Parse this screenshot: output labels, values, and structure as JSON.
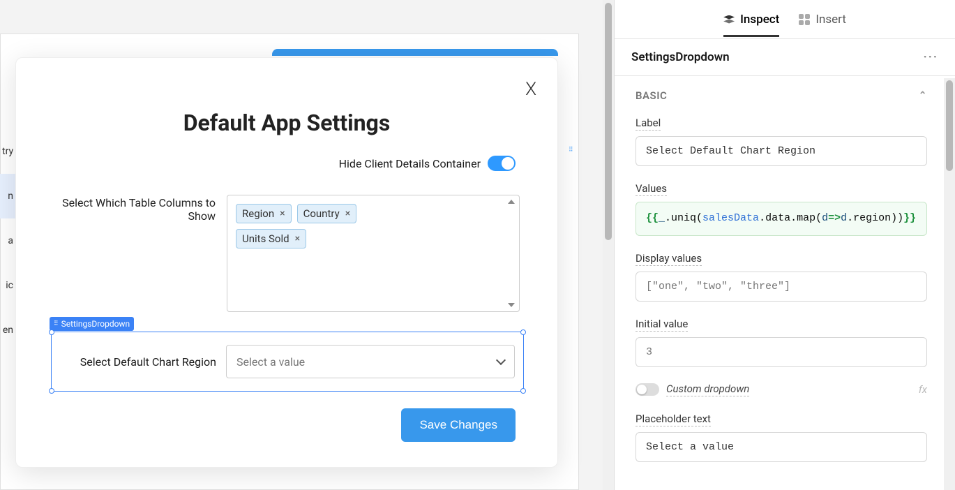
{
  "canvas": {
    "bg_blue_button_visible": true,
    "left_column_items": [
      "try",
      "n",
      "a",
      "ic",
      "en"
    ],
    "left_highlight_index": 1
  },
  "modal": {
    "title": "Default App Settings",
    "close_glyph": "X",
    "toggle_row": {
      "label": "Hide Client Details Container",
      "on": true
    },
    "columns_field": {
      "label": "Select Which Table Columns to Show",
      "chips": [
        "Region",
        "Country",
        "Units Sold"
      ]
    },
    "dropdown_field": {
      "badge": "SettingsDropdown",
      "label": "Select Default Chart Region",
      "placeholder": "Select a value"
    },
    "save_button": "Save Changes"
  },
  "inspector": {
    "tabs": {
      "inspect": "Inspect",
      "insert": "Insert",
      "active": "inspect"
    },
    "component_name": "SettingsDropdown",
    "section_title": "BASIC",
    "fields": {
      "label_label": "Label",
      "label_value": "Select Default Chart Region",
      "values_label": "Values",
      "values_code": {
        "p1": "{{",
        "p2": "_",
        "p3": ".uniq(",
        "p4": "salesData",
        "p5": ".data.",
        "p6": "map(",
        "p7": "d",
        "p8": "=>",
        "p9": "d",
        "p10": ".region))",
        "p11": "}}"
      },
      "display_values_label": "Display values",
      "display_values_placeholder": "[\"one\", \"two\", \"three\"]",
      "initial_value_label": "Initial value",
      "initial_value_placeholder": "3",
      "custom_dropdown_label": "Custom dropdown",
      "placeholder_text_label": "Placeholder text",
      "placeholder_text_value": "Select a value"
    }
  }
}
